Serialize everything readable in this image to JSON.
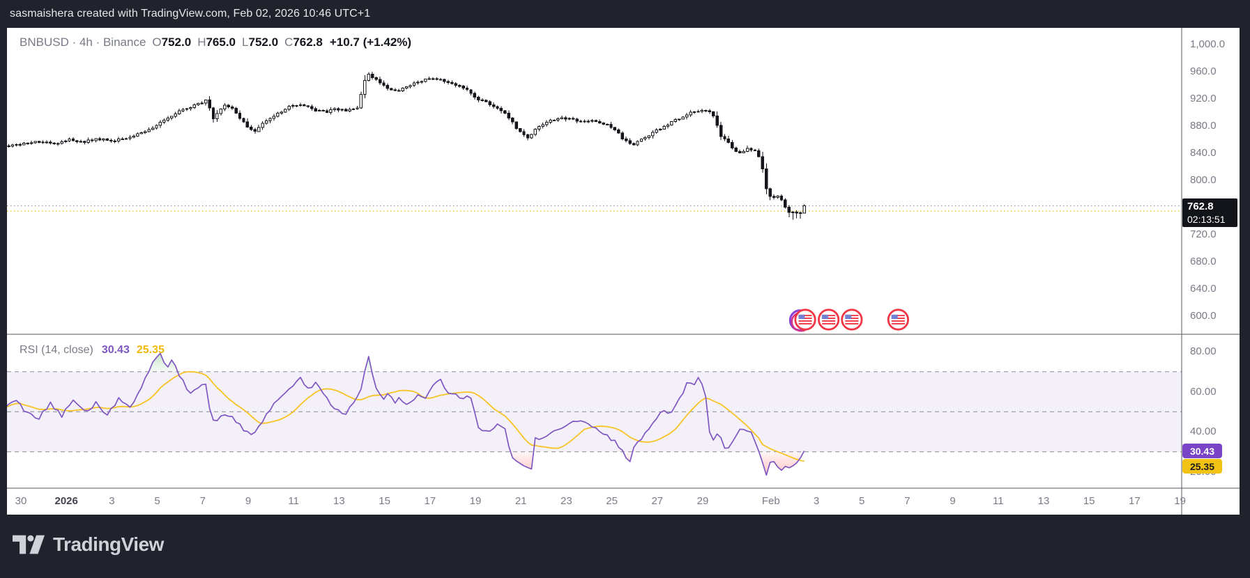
{
  "attribution": "sasmaishera created with TradingView.com, Feb 02, 2026 10:46 UTC+1",
  "main_legend": {
    "symbol_line": "BNBUSD · 4h · Binance",
    "ohlc": [
      {
        "k": "O",
        "v": "752.0"
      },
      {
        "k": "H",
        "v": "765.0"
      },
      {
        "k": "L",
        "v": "752.0"
      },
      {
        "k": "C",
        "v": "762.8"
      }
    ],
    "change": "+10.7 (+1.42%)"
  },
  "rsi_legend": {
    "title": "RSI (14, close)",
    "rsi_value": "30.43",
    "ma_value": "25.35"
  },
  "price_marker": {
    "price": "762.8",
    "countdown": "02:13:51"
  },
  "rsi_markers": {
    "rsi": "30.43",
    "ma": "25.35"
  },
  "footer": {
    "brand": "TradingView"
  },
  "colors": {
    "panel_bg": "#20232c",
    "chart_bg": "#ffffff",
    "axis_text": "#787b86",
    "axis_text_strong": "#42454f",
    "candle_dark": "#14161b",
    "candle_light": "#ffffff",
    "rsi_line": "#7e57c2",
    "rsi_ma_line": "#f7c325",
    "rsi_band_fill": "rgba(126,87,194,0.09)",
    "level_dash": "#888b94",
    "overbought_fill": "#4caf50",
    "oversold_fill": "#ff5252",
    "price_line_dotted": "#9aa0ab",
    "secondary_line_dotted": "#e9c21d",
    "divider": "#53565e",
    "marker_purple": "#7a44c8",
    "marker_yellow": "#f2c315",
    "flag_ring": "#f23645",
    "flag_canton": "#3c50c8"
  },
  "chart_data": {
    "type": "candlestick",
    "title": "BNBUSD 4h Binance with RSI(14) pane",
    "x_axis_note": "days since Dec 30; bar interval = 4h (6 bars/day)",
    "time_ticks": [
      {
        "label": "30",
        "day": 0
      },
      {
        "label": "2026",
        "day": 2,
        "bold": true
      },
      {
        "label": "3",
        "day": 4
      },
      {
        "label": "5",
        "day": 6
      },
      {
        "label": "7",
        "day": 8
      },
      {
        "label": "9",
        "day": 10
      },
      {
        "label": "11",
        "day": 12
      },
      {
        "label": "13",
        "day": 14
      },
      {
        "label": "15",
        "day": 16
      },
      {
        "label": "17",
        "day": 18
      },
      {
        "label": "19",
        "day": 20
      },
      {
        "label": "21",
        "day": 22
      },
      {
        "label": "23",
        "day": 24
      },
      {
        "label": "25",
        "day": 26
      },
      {
        "label": "27",
        "day": 28
      },
      {
        "label": "29",
        "day": 30
      },
      {
        "label": "Feb",
        "day": 33
      },
      {
        "label": "3",
        "day": 35
      },
      {
        "label": "5",
        "day": 37
      },
      {
        "label": "7",
        "day": 39
      },
      {
        "label": "9",
        "day": 41
      },
      {
        "label": "11",
        "day": 43
      },
      {
        "label": "13",
        "day": 45
      },
      {
        "label": "15",
        "day": 47
      },
      {
        "label": "17",
        "day": 49
      },
      {
        "label": "19",
        "day": 51
      }
    ],
    "price_ticks": [
      {
        "label": "1,000.0",
        "value": 1000
      },
      {
        "label": "960.0",
        "value": 960
      },
      {
        "label": "920.0",
        "value": 920
      },
      {
        "label": "880.0",
        "value": 880
      },
      {
        "label": "840.0",
        "value": 840
      },
      {
        "label": "800.0",
        "value": 800
      },
      {
        "label": "720.0",
        "value": 720
      },
      {
        "label": "680.0",
        "value": 680
      },
      {
        "label": "640.0",
        "value": 640
      },
      {
        "label": "600.0",
        "value": 600
      }
    ],
    "rsi_ticks": [
      {
        "label": "80.00",
        "value": 80
      },
      {
        "label": "60.00",
        "value": 60
      },
      {
        "label": "40.00",
        "value": 40
      },
      {
        "label": "20.00",
        "value": 20
      }
    ],
    "last_bar": {
      "open": 752.0,
      "high": 765.0,
      "low": 752.0,
      "close": 762.8
    },
    "price_line": 762.8,
    "secondary_price_line": 755.0,
    "price_anchors": [
      [
        -0.7,
        851
      ],
      [
        0.2,
        855
      ],
      [
        0.9,
        858
      ],
      [
        1.5,
        853
      ],
      [
        2.1,
        860
      ],
      [
        2.7,
        856
      ],
      [
        3.3,
        862
      ],
      [
        3.9,
        858
      ],
      [
        4.5,
        861
      ],
      [
        5.0,
        866
      ],
      [
        5.5,
        873
      ],
      [
        6.0,
        882
      ],
      [
        6.5,
        893
      ],
      [
        7.0,
        903
      ],
      [
        7.4,
        908
      ],
      [
        7.7,
        912
      ],
      [
        8.0,
        916
      ],
      [
        8.2,
        921
      ],
      [
        8.45,
        889
      ],
      [
        8.7,
        902
      ],
      [
        9.0,
        911
      ],
      [
        9.3,
        905
      ],
      [
        9.7,
        889
      ],
      [
        10.0,
        877
      ],
      [
        10.25,
        871
      ],
      [
        10.6,
        884
      ],
      [
        11.0,
        893
      ],
      [
        11.4,
        901
      ],
      [
        11.8,
        908
      ],
      [
        12.2,
        912
      ],
      [
        12.6,
        908
      ],
      [
        13.0,
        903
      ],
      [
        13.4,
        901
      ],
      [
        13.8,
        905
      ],
      [
        14.2,
        903
      ],
      [
        14.6,
        904
      ],
      [
        14.85,
        909
      ],
      [
        15.05,
        940
      ],
      [
        15.25,
        957
      ],
      [
        15.5,
        950
      ],
      [
        15.8,
        945
      ],
      [
        16.1,
        936
      ],
      [
        16.5,
        931
      ],
      [
        17.0,
        938
      ],
      [
        17.5,
        946
      ],
      [
        18.0,
        952
      ],
      [
        18.4,
        950
      ],
      [
        18.8,
        944
      ],
      [
        19.2,
        940
      ],
      [
        19.6,
        936
      ],
      [
        19.9,
        925
      ],
      [
        20.2,
        918
      ],
      [
        20.6,
        913
      ],
      [
        21.0,
        906
      ],
      [
        21.4,
        896
      ],
      [
        21.8,
        878
      ],
      [
        22.1,
        868
      ],
      [
        22.35,
        862
      ],
      [
        22.6,
        874
      ],
      [
        23.0,
        884
      ],
      [
        23.4,
        889
      ],
      [
        23.8,
        892
      ],
      [
        24.2,
        890
      ],
      [
        24.6,
        887
      ],
      [
        25.0,
        889
      ],
      [
        25.4,
        887
      ],
      [
        25.8,
        882
      ],
      [
        26.2,
        872
      ],
      [
        26.6,
        858
      ],
      [
        26.9,
        851
      ],
      [
        27.2,
        858
      ],
      [
        27.6,
        866
      ],
      [
        28.0,
        874
      ],
      [
        28.4,
        881
      ],
      [
        28.8,
        889
      ],
      [
        29.2,
        896
      ],
      [
        29.6,
        902
      ],
      [
        30.0,
        904
      ],
      [
        30.3,
        900
      ],
      [
        30.5,
        893
      ],
      [
        30.8,
        866
      ],
      [
        31.1,
        856
      ],
      [
        31.4,
        845
      ],
      [
        31.7,
        841
      ],
      [
        32.0,
        848
      ],
      [
        32.3,
        843
      ],
      [
        32.55,
        833
      ],
      [
        32.8,
        788
      ],
      [
        33.0,
        773
      ],
      [
        33.2,
        778
      ],
      [
        33.45,
        774
      ],
      [
        33.65,
        761
      ],
      [
        33.85,
        750
      ],
      [
        34.05,
        757
      ],
      [
        34.2,
        749
      ],
      [
        34.31,
        752.4
      ],
      [
        34.47,
        762.8
      ]
    ],
    "indicator": {
      "name": "RSI",
      "params": "14, close",
      "levels": {
        "upper": 70,
        "middle": 50,
        "lower": 30
      },
      "rsi_last": 30.43,
      "ma_last": 25.35,
      "rsi_anchors": [
        [
          -0.7,
          52
        ],
        [
          -0.2,
          56
        ],
        [
          0.3,
          49
        ],
        [
          0.8,
          47
        ],
        [
          1.3,
          54
        ],
        [
          1.8,
          48
        ],
        [
          2.3,
          55
        ],
        [
          2.8,
          50
        ],
        [
          3.3,
          54
        ],
        [
          3.8,
          49
        ],
        [
          4.3,
          56
        ],
        [
          4.8,
          52
        ],
        [
          5.2,
          60
        ],
        [
          5.6,
          70
        ],
        [
          5.9,
          77
        ],
        [
          6.15,
          80
        ],
        [
          6.4,
          72
        ],
        [
          6.7,
          76
        ],
        [
          6.9,
          70
        ],
        [
          7.2,
          64
        ],
        [
          7.5,
          58
        ],
        [
          7.8,
          62
        ],
        [
          8.1,
          66
        ],
        [
          8.35,
          48
        ],
        [
          8.6,
          44
        ],
        [
          9.0,
          50
        ],
        [
          9.4,
          46
        ],
        [
          9.8,
          41
        ],
        [
          10.2,
          38
        ],
        [
          10.6,
          45
        ],
        [
          11.0,
          52
        ],
        [
          11.5,
          58
        ],
        [
          12.0,
          64
        ],
        [
          12.3,
          67
        ],
        [
          12.6,
          61
        ],
        [
          13.0,
          64
        ],
        [
          13.4,
          57
        ],
        [
          13.8,
          52
        ],
        [
          14.2,
          48
        ],
        [
          14.6,
          54
        ],
        [
          14.9,
          58
        ],
        [
          15.1,
          70
        ],
        [
          15.3,
          78
        ],
        [
          15.65,
          60
        ],
        [
          15.9,
          56
        ],
        [
          16.2,
          60
        ],
        [
          16.45,
          55
        ],
        [
          16.7,
          57
        ],
        [
          16.9,
          54
        ],
        [
          17.2,
          56
        ],
        [
          17.5,
          58
        ],
        [
          17.8,
          56
        ],
        [
          18.1,
          64
        ],
        [
          18.45,
          66
        ],
        [
          18.7,
          60
        ],
        [
          19.0,
          60
        ],
        [
          19.3,
          56
        ],
        [
          19.6,
          58
        ],
        [
          19.85,
          57
        ],
        [
          20.05,
          44
        ],
        [
          20.3,
          41
        ],
        [
          20.6,
          40
        ],
        [
          20.9,
          43
        ],
        [
          21.2,
          44
        ],
        [
          21.35,
          39
        ],
        [
          21.6,
          27
        ],
        [
          21.9,
          24
        ],
        [
          22.2,
          22.5
        ],
        [
          22.45,
          20
        ],
        [
          22.6,
          38
        ],
        [
          22.9,
          35
        ],
        [
          23.2,
          39
        ],
        [
          23.5,
          41
        ],
        [
          23.8,
          42
        ],
        [
          24.2,
          45
        ],
        [
          24.6,
          45
        ],
        [
          25.0,
          44
        ],
        [
          25.4,
          41
        ],
        [
          25.7,
          38
        ],
        [
          26.0,
          36
        ],
        [
          26.3,
          33
        ],
        [
          26.5,
          30
        ],
        [
          26.75,
          24
        ],
        [
          27.0,
          34
        ],
        [
          27.3,
          36
        ],
        [
          27.6,
          41
        ],
        [
          28.0,
          47
        ],
        [
          28.3,
          51
        ],
        [
          28.6,
          49
        ],
        [
          28.9,
          56
        ],
        [
          29.1,
          59
        ],
        [
          29.4,
          66
        ],
        [
          29.6,
          63
        ],
        [
          29.8,
          67
        ],
        [
          30.0,
          62
        ],
        [
          30.15,
          57
        ],
        [
          30.3,
          40
        ],
        [
          30.45,
          35
        ],
        [
          30.6,
          40
        ],
        [
          30.75,
          38
        ],
        [
          30.9,
          33
        ],
        [
          31.05,
          31
        ],
        [
          31.2,
          33
        ],
        [
          31.4,
          36
        ],
        [
          31.6,
          41
        ],
        [
          31.9,
          41
        ],
        [
          32.1,
          42
        ],
        [
          32.3,
          34
        ],
        [
          32.45,
          30
        ],
        [
          32.8,
          19
        ],
        [
          33.0,
          25
        ],
        [
          33.2,
          25
        ],
        [
          33.5,
          20
        ],
        [
          33.7,
          22.5
        ],
        [
          33.9,
          23.5
        ],
        [
          34.1,
          24
        ],
        [
          34.3,
          28
        ],
        [
          34.47,
          30.43
        ]
      ]
    },
    "events": {
      "type": "us-economic-event-flags",
      "days": [
        34.51,
        35.54,
        36.56,
        38.6
      ]
    }
  }
}
